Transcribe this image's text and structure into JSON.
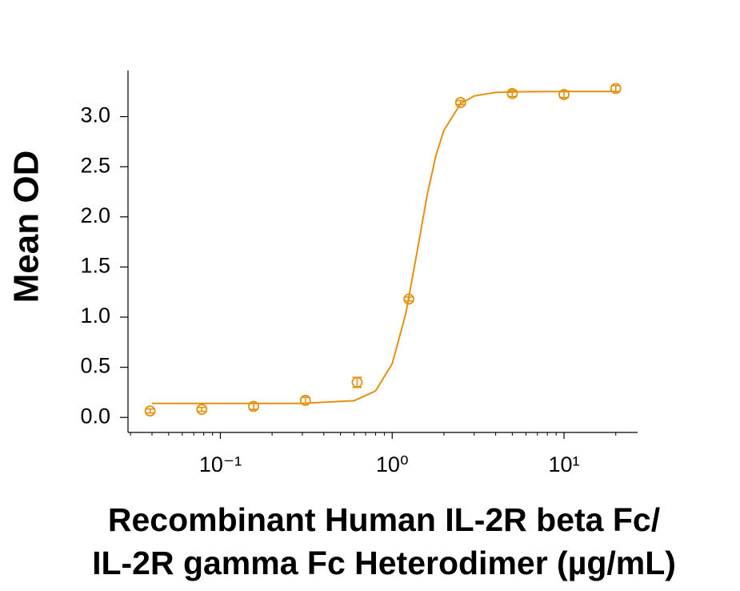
{
  "chart_data": {
    "type": "scatter",
    "y_label": "Mean OD",
    "x_label_lines": [
      "Recombinant Human IL-2R beta Fc/",
      "IL-2R gamma Fc Heterodimer (µg/mL)"
    ],
    "color": "#E4900F",
    "log_x": true,
    "x": [
      0.039,
      0.078,
      0.156,
      0.3125,
      0.625,
      1.25,
      2.5,
      5,
      10,
      20
    ],
    "values": [
      0.064,
      0.08,
      0.11,
      0.17,
      0.35,
      1.18,
      3.14,
      3.23,
      3.22,
      3.28
    ],
    "errors": [
      0.02,
      0.02,
      0.03,
      0.03,
      0.05,
      0.02,
      0.02,
      0.03,
      0.03,
      0.03
    ],
    "curve": {
      "x": [
        0.04,
        0.1,
        0.3,
        0.6,
        0.8,
        1.0,
        1.2,
        1.4,
        1.6,
        1.8,
        2.0,
        2.5,
        3,
        4,
        6,
        10,
        20
      ],
      "y": [
        0.14,
        0.14,
        0.14,
        0.166,
        0.264,
        0.536,
        1.037,
        1.664,
        2.224,
        2.619,
        2.864,
        3.129,
        3.206,
        3.241,
        3.248,
        3.25,
        3.25
      ]
    },
    "xlim": [
      0.029,
      26.8
    ],
    "ylim": [
      -0.15,
      3.46
    ],
    "xticks": [
      {
        "value": 0.1,
        "label": "10⁻¹"
      },
      {
        "value": 1,
        "label": "10⁰"
      },
      {
        "value": 10,
        "label": "10¹"
      }
    ],
    "xminorticks": [
      0.03,
      0.04,
      0.05,
      0.06,
      0.07,
      0.08,
      0.09,
      0.2,
      0.3,
      0.4,
      0.5,
      0.6,
      0.7,
      0.8,
      0.9,
      2,
      3,
      4,
      5,
      6,
      7,
      8,
      9,
      20
    ],
    "yticks": [
      {
        "value": 0,
        "label": "0.0"
      },
      {
        "value": 0.5,
        "label": "0.5"
      },
      {
        "value": 1,
        "label": "1.0"
      },
      {
        "value": 1.5,
        "label": "1.5"
      },
      {
        "value": 2,
        "label": "2.0"
      },
      {
        "value": 2.5,
        "label": "2.5"
      },
      {
        "value": 3,
        "label": "3.0"
      }
    ]
  }
}
